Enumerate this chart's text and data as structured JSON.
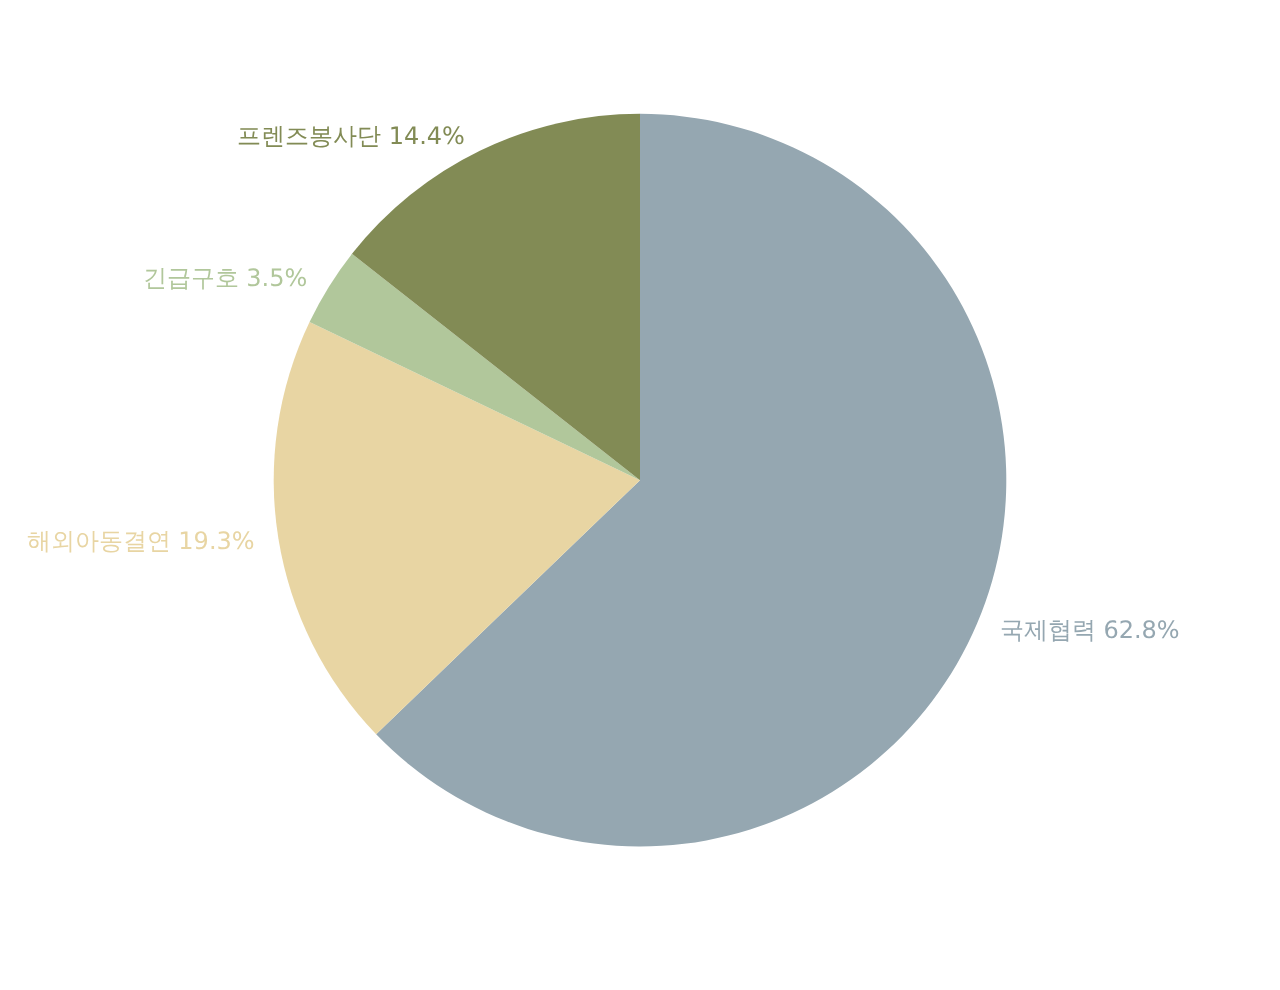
{
  "chart_data": {
    "type": "pie",
    "categories": [
      "국제협력",
      "해외아동결연",
      "긴급구호",
      "프렌즈봉사단"
    ],
    "values": [
      62.8,
      19.3,
      3.5,
      14.4
    ],
    "value_labels": [
      "62.8%",
      "19.3%",
      "3.5%",
      "14.4%"
    ],
    "colors": [
      "#95a7b1",
      "#e8d5a3",
      "#b1c79b",
      "#828b55"
    ],
    "legend": false
  }
}
